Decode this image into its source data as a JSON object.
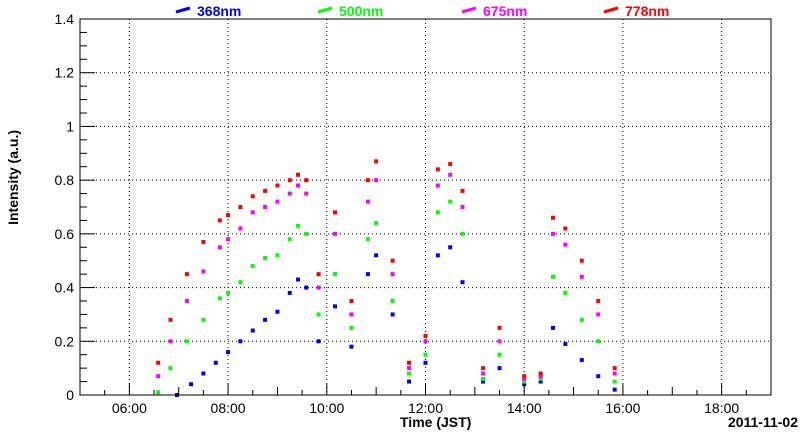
{
  "chart_data": {
    "type": "scatter",
    "title": "",
    "xlabel": "Time (JST)",
    "ylabel": "Intensity (a.u.)",
    "date_label": "2011-11-02",
    "xlim": [
      "05:00",
      "19:00"
    ],
    "ylim": [
      0,
      1.4
    ],
    "grid": true,
    "legend_position": "top",
    "x_tick_labels": [
      "06:00",
      "08:00",
      "10:00",
      "12:00",
      "14:00",
      "16:00",
      "18:00"
    ],
    "y_tick_labels": [
      "0",
      "0.2",
      "0.4",
      "0.6",
      "0.8",
      "1",
      "1.2",
      "1.4"
    ],
    "series": [
      {
        "name": "368nm",
        "color": "#0000ff",
        "points": [
          [
            "06:58",
            0.0
          ],
          [
            "07:15",
            0.04
          ],
          [
            "07:30",
            0.08
          ],
          [
            "07:45",
            0.12
          ],
          [
            "08:00",
            0.16
          ],
          [
            "08:15",
            0.2
          ],
          [
            "08:30",
            0.24
          ],
          [
            "08:45",
            0.28
          ],
          [
            "09:00",
            0.31
          ],
          [
            "09:15",
            0.38
          ],
          [
            "09:25",
            0.43
          ],
          [
            "09:35",
            0.4
          ],
          [
            "09:50",
            0.2
          ],
          [
            "10:10",
            0.33
          ],
          [
            "10:30",
            0.18
          ],
          [
            "10:50",
            0.45
          ],
          [
            "11:00",
            0.52
          ],
          [
            "11:20",
            0.3
          ],
          [
            "11:40",
            0.05
          ],
          [
            "12:00",
            0.12
          ],
          [
            "12:15",
            0.52
          ],
          [
            "12:30",
            0.55
          ],
          [
            "12:45",
            0.42
          ],
          [
            "13:10",
            0.05
          ],
          [
            "13:30",
            0.1
          ],
          [
            "14:00",
            0.04
          ],
          [
            "14:20",
            0.05
          ],
          [
            "14:35",
            0.25
          ],
          [
            "14:50",
            0.19
          ],
          [
            "15:10",
            0.13
          ],
          [
            "15:30",
            0.07
          ],
          [
            "15:50",
            0.02
          ]
        ]
      },
      {
        "name": "500nm",
        "color": "#00ff00",
        "points": [
          [
            "06:35",
            0.01
          ],
          [
            "06:50",
            0.1
          ],
          [
            "07:10",
            0.2
          ],
          [
            "07:30",
            0.28
          ],
          [
            "07:50",
            0.36
          ],
          [
            "08:00",
            0.38
          ],
          [
            "08:15",
            0.42
          ],
          [
            "08:30",
            0.48
          ],
          [
            "08:45",
            0.51
          ],
          [
            "09:00",
            0.52
          ],
          [
            "09:15",
            0.58
          ],
          [
            "09:25",
            0.63
          ],
          [
            "09:35",
            0.6
          ],
          [
            "09:50",
            0.3
          ],
          [
            "10:10",
            0.45
          ],
          [
            "10:30",
            0.25
          ],
          [
            "10:50",
            0.58
          ],
          [
            "11:00",
            0.64
          ],
          [
            "11:20",
            0.35
          ],
          [
            "11:40",
            0.08
          ],
          [
            "12:00",
            0.15
          ],
          [
            "12:15",
            0.68
          ],
          [
            "12:30",
            0.72
          ],
          [
            "12:45",
            0.6
          ],
          [
            "13:10",
            0.06
          ],
          [
            "13:30",
            0.15
          ],
          [
            "14:00",
            0.05
          ],
          [
            "14:20",
            0.06
          ],
          [
            "14:35",
            0.44
          ],
          [
            "14:50",
            0.38
          ],
          [
            "15:10",
            0.28
          ],
          [
            "15:30",
            0.2
          ],
          [
            "15:50",
            0.05
          ]
        ]
      },
      {
        "name": "675nm",
        "color": "#ff00ff",
        "points": [
          [
            "06:35",
            0.07
          ],
          [
            "06:50",
            0.2
          ],
          [
            "07:10",
            0.35
          ],
          [
            "07:30",
            0.46
          ],
          [
            "07:50",
            0.55
          ],
          [
            "08:00",
            0.58
          ],
          [
            "08:15",
            0.62
          ],
          [
            "08:30",
            0.68
          ],
          [
            "08:45",
            0.7
          ],
          [
            "09:00",
            0.72
          ],
          [
            "09:15",
            0.75
          ],
          [
            "09:25",
            0.78
          ],
          [
            "09:35",
            0.75
          ],
          [
            "09:50",
            0.4
          ],
          [
            "10:10",
            0.6
          ],
          [
            "10:30",
            0.3
          ],
          [
            "10:50",
            0.72
          ],
          [
            "11:00",
            0.8
          ],
          [
            "11:20",
            0.45
          ],
          [
            "11:40",
            0.1
          ],
          [
            "12:00",
            0.2
          ],
          [
            "12:15",
            0.78
          ],
          [
            "12:30",
            0.82
          ],
          [
            "12:45",
            0.7
          ],
          [
            "13:10",
            0.08
          ],
          [
            "13:30",
            0.2
          ],
          [
            "14:00",
            0.06
          ],
          [
            "14:20",
            0.07
          ],
          [
            "14:35",
            0.6
          ],
          [
            "14:50",
            0.56
          ],
          [
            "15:10",
            0.44
          ],
          [
            "15:30",
            0.3
          ],
          [
            "15:50",
            0.08
          ]
        ]
      },
      {
        "name": "778nm",
        "color": "#ff0000",
        "points": [
          [
            "06:35",
            0.12
          ],
          [
            "06:50",
            0.28
          ],
          [
            "07:10",
            0.45
          ],
          [
            "07:30",
            0.57
          ],
          [
            "07:50",
            0.65
          ],
          [
            "08:00",
            0.67
          ],
          [
            "08:15",
            0.7
          ],
          [
            "08:30",
            0.74
          ],
          [
            "08:45",
            0.76
          ],
          [
            "09:00",
            0.78
          ],
          [
            "09:15",
            0.8
          ],
          [
            "09:25",
            0.82
          ],
          [
            "09:35",
            0.8
          ],
          [
            "09:50",
            0.45
          ],
          [
            "10:10",
            0.68
          ],
          [
            "10:30",
            0.35
          ],
          [
            "10:50",
            0.8
          ],
          [
            "11:00",
            0.87
          ],
          [
            "11:20",
            0.5
          ],
          [
            "11:40",
            0.12
          ],
          [
            "12:00",
            0.22
          ],
          [
            "12:15",
            0.84
          ],
          [
            "12:30",
            0.86
          ],
          [
            "12:45",
            0.76
          ],
          [
            "13:10",
            0.1
          ],
          [
            "13:30",
            0.25
          ],
          [
            "14:00",
            0.07
          ],
          [
            "14:20",
            0.08
          ],
          [
            "14:35",
            0.66
          ],
          [
            "14:50",
            0.62
          ],
          [
            "15:10",
            0.5
          ],
          [
            "15:30",
            0.35
          ],
          [
            "15:50",
            0.1
          ]
        ]
      }
    ]
  }
}
